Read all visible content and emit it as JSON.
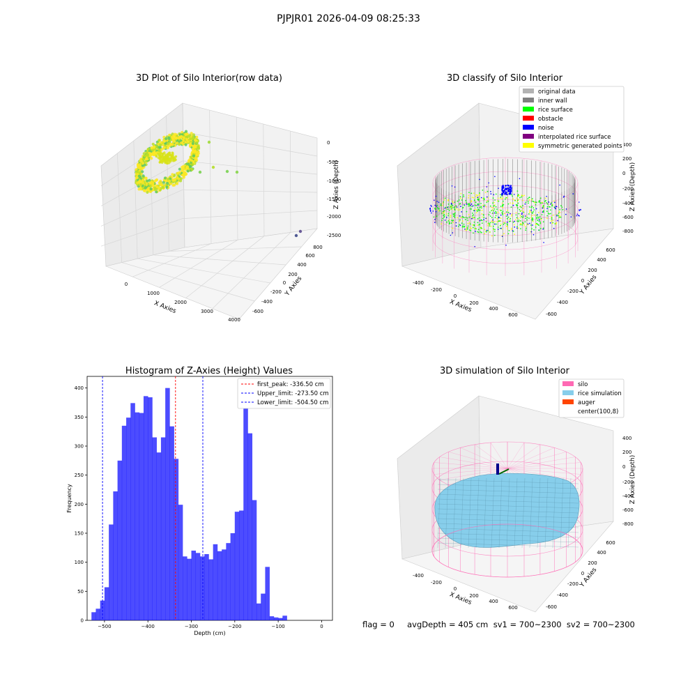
{
  "figure_title": "PJPJR01 2026-04-09 08:25:33",
  "status_text": "flag = 0     avgDepth = 405 cm  sv1 = 700~2300  sv2 = 700~2300",
  "chart_data": [
    {
      "type": "scatter3d",
      "title": "3D Plot of Silo Interior(row data)",
      "xlabel": "X Axies",
      "ylabel": "Y Axies",
      "zlabel": "Z Axies (Depth)",
      "x_ticks": [
        "0",
        "1000",
        "2000",
        "3000",
        "4000"
      ],
      "y_ticks": [
        "-600",
        "-400",
        "-200",
        "0",
        "200",
        "400",
        "600",
        "800"
      ],
      "z_ticks": [
        "0",
        "-500",
        "-1000",
        "-1500",
        "-2000",
        "-2500"
      ],
      "colormap": [
        "#440154",
        "#3b528b",
        "#21918c",
        "#5ec962",
        "#fde725"
      ],
      "outliers": [
        {
          "x": 1300,
          "y": 100,
          "z": -1000
        },
        {
          "x": 1600,
          "y": 100,
          "z": -900
        },
        {
          "x": 2000,
          "y": 100,
          "z": -950
        },
        {
          "x": 2300,
          "y": 100,
          "z": -1000
        },
        {
          "x": 900,
          "y": 100,
          "z": -500
        },
        {
          "x": 3700,
          "y": -500,
          "z": -2500
        },
        {
          "x": 3800,
          "y": -400,
          "z": -2400
        }
      ]
    },
    {
      "type": "scatter3d",
      "title": "3D classify of Silo Interior",
      "xlabel": "X Axies",
      "ylabel": "Y Axies",
      "zlabel": "Z Axies (Depth)",
      "x_ticks": [
        "-400",
        "-200",
        "0",
        "200",
        "400",
        "600"
      ],
      "y_ticks": [
        "-600",
        "-400",
        "-200",
        "0",
        "200",
        "400",
        "600"
      ],
      "z_ticks": [
        "400",
        "200",
        "0",
        "-200",
        "-400",
        "-600",
        "-800"
      ],
      "legend_position": "top-right",
      "legend": [
        {
          "label": "original data",
          "color": "#b3b3b3"
        },
        {
          "label": "inner wall",
          "color": "#808080"
        },
        {
          "label": "rice surface",
          "color": "#00ff00"
        },
        {
          "label": "obstacle",
          "color": "#ff0000"
        },
        {
          "label": "noise",
          "color": "#0000ff"
        },
        {
          "label": "interpolated rice surface",
          "color": "#800080"
        },
        {
          "label": "symmetric generated points",
          "color": "#ffff00"
        }
      ]
    },
    {
      "type": "bar",
      "title": "Histogram of Z-Axies (Height) Values",
      "xlabel": "Depth (cm)",
      "ylabel": "Frequency",
      "xlim": [
        -540,
        25
      ],
      "ylim": [
        0,
        420
      ],
      "x_ticks": [
        -500,
        -400,
        -300,
        -200,
        -100,
        0
      ],
      "y_ticks": [
        0,
        50,
        100,
        150,
        200,
        250,
        300,
        350,
        400
      ],
      "bar_color": "#0000ff",
      "bin_start": -530,
      "bin_width": 10,
      "values": [
        14,
        20,
        34,
        57,
        165,
        222,
        275,
        335,
        349,
        374,
        358,
        357,
        386,
        384,
        315,
        289,
        315,
        400,
        334,
        278,
        199,
        110,
        106,
        120,
        116,
        110,
        114,
        105,
        131,
        119,
        122,
        133,
        150,
        187,
        189,
        366,
        322,
        207,
        29,
        46,
        92,
        7,
        5,
        4,
        8
      ],
      "vlines": [
        {
          "label": "first_peak: -336.50 cm",
          "x": -336.5,
          "color": "#ff0000"
        },
        {
          "label": "Upper_limit: -273.50 cm",
          "x": -273.5,
          "color": "#0000ff"
        },
        {
          "label": "Lower_limit: -504.50 cm",
          "x": -504.5,
          "color": "#0000ff"
        }
      ],
      "legend_position": "top-right"
    },
    {
      "type": "surface3d",
      "title": "3D simulation of Silo Interior",
      "xlabel": "X Axies",
      "ylabel": "Y Axies",
      "zlabel": "Z Axies (Depth)",
      "x_ticks": [
        "-400",
        "-200",
        "0",
        "200",
        "400",
        "600"
      ],
      "y_ticks": [
        "-600",
        "-400",
        "-200",
        "0",
        "200",
        "400",
        "600"
      ],
      "z_ticks": [
        "400",
        "200",
        "0",
        "-200",
        "-400",
        "-600",
        "-800"
      ],
      "legend_position": "top-right",
      "legend": [
        {
          "label": "silo",
          "color": "#ff69b4"
        },
        {
          "label": "rice simulation",
          "color": "#87ceeb"
        },
        {
          "label": "auger",
          "color": "#ff4500"
        },
        {
          "label": "center(100,8)",
          "color": "#ffffff"
        }
      ]
    }
  ]
}
